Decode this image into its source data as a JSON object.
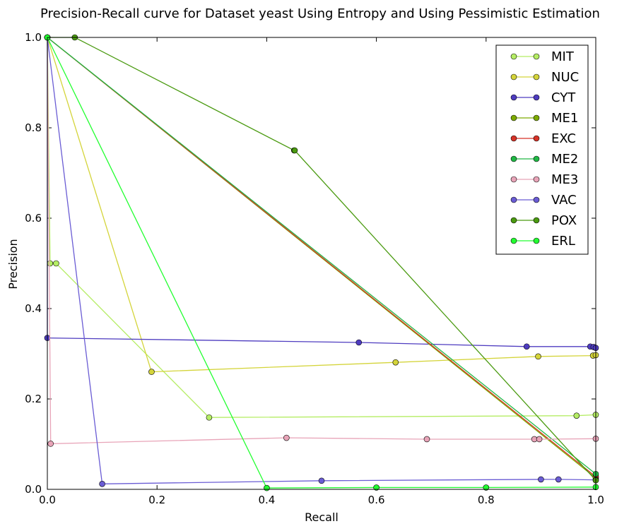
{
  "chart_data": {
    "type": "line",
    "title": "Precision-Recall curve for Dataset yeast Using Entropy and Using Pessimistic Estimation",
    "xlabel": "Recall",
    "ylabel": "Precision",
    "xlim": [
      0.0,
      1.0
    ],
    "ylim": [
      0.0,
      1.0
    ],
    "xticks": [
      "0.0",
      "0.2",
      "0.4",
      "0.6",
      "0.8",
      "1.0"
    ],
    "yticks": [
      "0.0",
      "0.2",
      "0.4",
      "0.6",
      "0.8",
      "1.0"
    ],
    "grid": false,
    "legend_position": "top-right",
    "series": [
      {
        "name": "MIT",
        "color": "#b5ed64",
        "points": [
          [
            0.0,
            1.0
          ],
          [
            0.005,
            0.5
          ],
          [
            0.016,
            0.5
          ],
          [
            0.295,
            0.159
          ],
          [
            0.965,
            0.163
          ],
          [
            1.0,
            0.165
          ]
        ]
      },
      {
        "name": "NUC",
        "color": "#d4d43a",
        "points": [
          [
            0.0,
            1.0
          ],
          [
            0.19,
            0.26
          ],
          [
            0.635,
            0.281
          ],
          [
            0.895,
            0.294
          ],
          [
            0.995,
            0.296
          ],
          [
            1.0,
            0.297
          ]
        ]
      },
      {
        "name": "CYT",
        "color": "#4e3cc0",
        "points": [
          [
            0.0,
            1.0
          ],
          [
            0.0,
            0.335
          ],
          [
            0.568,
            0.325
          ],
          [
            0.874,
            0.316
          ],
          [
            0.99,
            0.316
          ],
          [
            0.996,
            0.315
          ],
          [
            1.0,
            0.313
          ]
        ]
      },
      {
        "name": "ME1",
        "color": "#7daa00",
        "points": [
          [
            0.0,
            1.0
          ],
          [
            1.0,
            0.025
          ]
        ]
      },
      {
        "name": "EXC",
        "color": "#d63328",
        "points": [
          [
            0.0,
            1.0
          ],
          [
            1.0,
            0.028
          ]
        ]
      },
      {
        "name": "ME2",
        "color": "#20b845",
        "points": [
          [
            0.0,
            1.0
          ],
          [
            1.0,
            0.034
          ]
        ]
      },
      {
        "name": "ME3",
        "color": "#e8a4b8",
        "points": [
          [
            0.0,
            1.0
          ],
          [
            0.006,
            0.101
          ],
          [
            0.436,
            0.114
          ],
          [
            0.692,
            0.111
          ],
          [
            0.888,
            0.111
          ],
          [
            0.897,
            0.111
          ],
          [
            1.0,
            0.112
          ]
        ]
      },
      {
        "name": "VAC",
        "color": "#6a5cd4",
        "points": [
          [
            0.0,
            1.0
          ],
          [
            0.1,
            0.012
          ],
          [
            0.5,
            0.019
          ],
          [
            0.9,
            0.022
          ],
          [
            0.932,
            0.022
          ],
          [
            1.0,
            0.021
          ]
        ]
      },
      {
        "name": "POX",
        "color": "#4a9a10",
        "points": [
          [
            0.0,
            1.0
          ],
          [
            0.05,
            1.0
          ],
          [
            0.45,
            0.75
          ],
          [
            0.451,
            0.75
          ],
          [
            1.0,
            0.02
          ]
        ]
      },
      {
        "name": "ERL",
        "color": "#22ff30",
        "points": [
          [
            0.0,
            1.0
          ],
          [
            0.4,
            0.003
          ],
          [
            0.6,
            0.004
          ],
          [
            0.8,
            0.004
          ],
          [
            1.0,
            0.005
          ]
        ]
      }
    ]
  }
}
